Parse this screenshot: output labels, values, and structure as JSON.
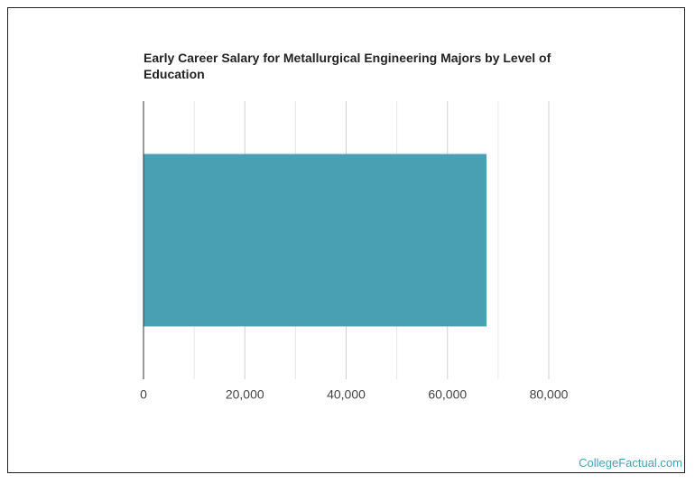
{
  "chart_data": {
    "type": "bar",
    "orientation": "horizontal",
    "title": "Early Career Salary for Metallurgical Engineering Majors by Level of Education",
    "categories": [
      null
    ],
    "values": [
      67700
    ],
    "color": "#4aa0b3",
    "xlim": [
      0,
      80000
    ],
    "xticks": [
      0,
      {
        "value": 20000,
        "label": "20,000"
      },
      {
        "value": 40000,
        "label": "40,000"
      },
      {
        "value": 60000,
        "label": "60,000"
      },
      {
        "value": 80000,
        "label": "80,000"
      }
    ],
    "minor_xticks": [
      10000,
      30000,
      50000,
      70000
    ],
    "grid": true
  },
  "footer": {
    "source": "CollegeFactual.com"
  }
}
